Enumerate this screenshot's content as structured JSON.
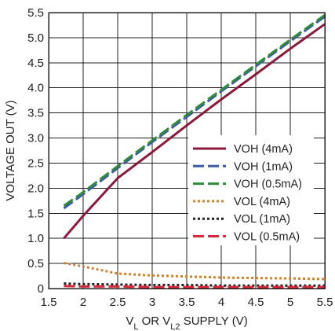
{
  "chart_data": {
    "type": "line",
    "title": "",
    "ylabel": "VOLTAGE OUT (V)",
    "xlabel": {
      "parts": [
        {
          "text": "V",
          "sub": false
        },
        {
          "text": "L",
          "sub": true
        },
        {
          "text": " OR V",
          "sub": false
        },
        {
          "text": "L2",
          "sub": true
        },
        {
          "text": " SUPPLY (V)",
          "sub": false
        }
      ]
    },
    "xlim": [
      1.5,
      5.5
    ],
    "ylim": [
      0,
      5.5
    ],
    "x_ticks": [
      "1.5",
      "2",
      "2.5",
      "3",
      "3.5",
      "4",
      "4.5",
      "5",
      "5.5"
    ],
    "y_ticks": [
      "0",
      "0.5",
      "1.0",
      "1.5",
      "2.0",
      "2.5",
      "3.0",
      "3.5",
      "4.0",
      "4.5",
      "5.0",
      "5.5"
    ],
    "grid": true,
    "legend_position": "right",
    "series": [
      {
        "name": "VOH (4mA)",
        "color": "#8b1a3a",
        "style": "solid",
        "x": [
          1.72,
          2.0,
          2.5,
          3.0,
          3.5,
          4.0,
          4.5,
          5.0,
          5.5
        ],
        "y": [
          1.0,
          1.45,
          2.2,
          2.72,
          3.25,
          3.77,
          4.27,
          4.78,
          5.27
        ]
      },
      {
        "name": "VOH (1mA)",
        "color": "#3d5aa6",
        "style": "dashed",
        "x": [
          1.72,
          2.0,
          2.5,
          3.0,
          3.5,
          4.0,
          4.5,
          5.0,
          5.5
        ],
        "y": [
          1.6,
          1.88,
          2.4,
          2.92,
          3.42,
          3.93,
          4.43,
          4.93,
          5.42
        ]
      },
      {
        "name": "VOH (0.5mA)",
        "color": "#2e8b3e",
        "style": "dashed",
        "x": [
          1.72,
          2.0,
          2.5,
          3.0,
          3.5,
          4.0,
          4.5,
          5.0,
          5.5
        ],
        "y": [
          1.65,
          1.92,
          2.44,
          2.95,
          3.46,
          3.96,
          4.46,
          4.96,
          5.45
        ]
      },
      {
        "name": "VOL (4mA)",
        "color": "#c8843a",
        "style": "dotted",
        "x": [
          1.72,
          2.0,
          2.5,
          3.0,
          3.5,
          4.0,
          4.5,
          5.0,
          5.5
        ],
        "y": [
          0.51,
          0.44,
          0.3,
          0.26,
          0.24,
          0.22,
          0.21,
          0.2,
          0.19
        ]
      },
      {
        "name": "VOL (1mA)",
        "color": "#231f20",
        "style": "dotted",
        "x": [
          1.72,
          2.0,
          2.5,
          3.0,
          3.5,
          4.0,
          4.5,
          5.0,
          5.5
        ],
        "y": [
          0.1,
          0.09,
          0.08,
          0.07,
          0.07,
          0.06,
          0.06,
          0.06,
          0.06
        ]
      },
      {
        "name": "VOL (0.5mA)",
        "color": "#d42a3c",
        "style": "dashed",
        "x": [
          1.72,
          2.0,
          2.5,
          3.0,
          3.5,
          4.0,
          4.5,
          5.0,
          5.5
        ],
        "y": [
          0.05,
          0.04,
          0.04,
          0.03,
          0.03,
          0.03,
          0.03,
          0.03,
          0.03
        ]
      }
    ]
  }
}
